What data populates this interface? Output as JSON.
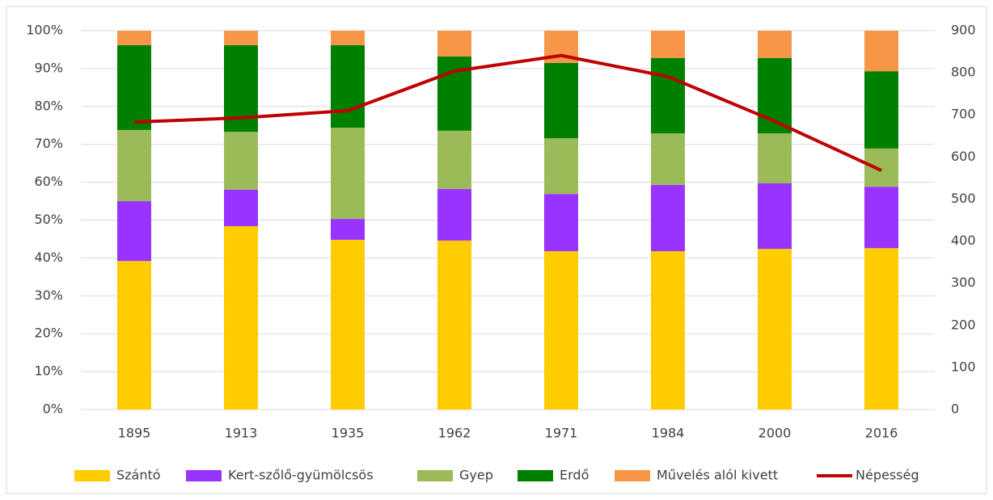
{
  "chart_data": {
    "type": "stacked_bar_line",
    "categories": [
      "1895",
      "1913",
      "1935",
      "1962",
      "1971",
      "1984",
      "2000",
      "2016"
    ],
    "series": [
      {
        "name": "Szántó",
        "color": "#ffcc00",
        "values": [
          39.2,
          48.4,
          44.8,
          44.6,
          41.8,
          41.8,
          42.4,
          42.6
        ]
      },
      {
        "name": "Kert-szőlő-gyümölcsös",
        "color": "#9933ff",
        "values": [
          15.8,
          9.6,
          5.5,
          13.6,
          15.1,
          17.5,
          17.3,
          16.2
        ]
      },
      {
        "name": "Gyep",
        "color": "#9bbb59",
        "values": [
          18.8,
          15.3,
          24.1,
          15.4,
          14.7,
          13.6,
          13.2,
          10.1
        ]
      },
      {
        "name": "Erdő",
        "color": "#008000",
        "values": [
          22.4,
          22.9,
          21.8,
          19.6,
          19.9,
          19.9,
          19.9,
          20.4
        ]
      },
      {
        "name": "Művelés alól kivett",
        "color": "#f79646",
        "values": [
          3.8,
          3.8,
          3.8,
          6.8,
          8.5,
          7.2,
          7.2,
          10.7
        ]
      },
      {
        "name": "Népesség",
        "color": "#c00000",
        "type": "line",
        "axis": "y2",
        "values": [
          683,
          693,
          710,
          804,
          841,
          791,
          685,
          568
        ]
      }
    ],
    "ylim": [
      0,
      100
    ],
    "yticks": [
      {
        "value": 0,
        "label": "0%"
      },
      {
        "value": 10,
        "label": "10%"
      },
      {
        "value": 20,
        "label": "20%"
      },
      {
        "value": 30,
        "label": "30%"
      },
      {
        "value": 40,
        "label": "40%"
      },
      {
        "value": 50,
        "label": "50%"
      },
      {
        "value": 60,
        "label": "60%"
      },
      {
        "value": 70,
        "label": "70%"
      },
      {
        "value": 80,
        "label": "80%"
      },
      {
        "value": 90,
        "label": "90%"
      },
      {
        "value": 100,
        "label": "100%"
      }
    ],
    "y2lim": [
      0,
      900
    ],
    "y2ticks": [
      0,
      100,
      200,
      300,
      400,
      500,
      600,
      700,
      800,
      900
    ],
    "grid": true,
    "legend": "bottom"
  }
}
